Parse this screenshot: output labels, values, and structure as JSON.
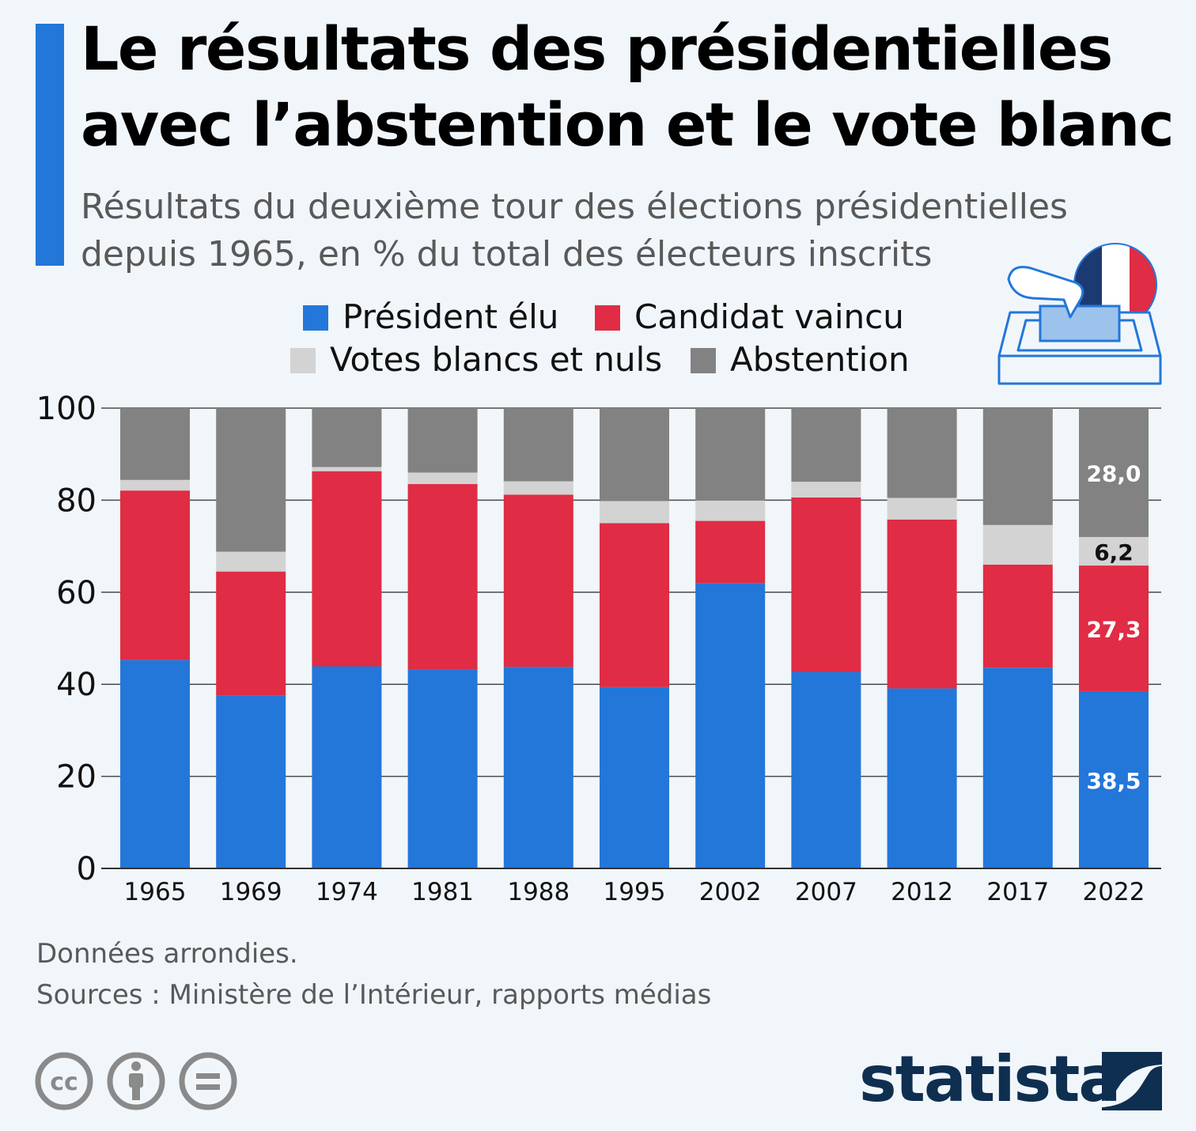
{
  "header": {
    "title_line1": "Le résultats des présidentielles",
    "title_line2": "avec l’abstention et le vote blanc",
    "subtitle_line1": "Résultats du deuxième tour des élections présidentielles",
    "subtitle_line2": "depuis 1965, en % du total des électeurs inscrits"
  },
  "legend": {
    "president": "Président élu",
    "candidat": "Candidat vaincu",
    "blancs": "Votes blancs et nuls",
    "abstention": "Abstention"
  },
  "colors": {
    "accent": "#2377d9",
    "president": "#2377d9",
    "candidat": "#e02c45",
    "blancs": "#d3d3d3",
    "abstention": "#828282",
    "brand": "#0f2f50"
  },
  "chart_data": {
    "type": "bar",
    "stacked": true,
    "categories": [
      "1965",
      "1969",
      "1974",
      "1981",
      "1988",
      "1995",
      "2002",
      "2007",
      "2012",
      "2017",
      "2022"
    ],
    "series": [
      {
        "name": "Président élu",
        "values": [
          45.3,
          37.5,
          43.9,
          43.2,
          43.8,
          39.4,
          62.0,
          42.7,
          39.1,
          43.6,
          38.5
        ]
      },
      {
        "name": "Candidat vaincu",
        "values": [
          36.8,
          27.0,
          42.4,
          40.3,
          37.4,
          35.6,
          13.5,
          37.9,
          36.7,
          22.4,
          27.3
        ]
      },
      {
        "name": "Votes blancs et nuls",
        "values": [
          2.3,
          4.3,
          0.9,
          2.5,
          2.9,
          4.8,
          4.4,
          3.4,
          4.7,
          8.6,
          6.2
        ]
      },
      {
        "name": "Abstention",
        "values": [
          15.6,
          31.2,
          12.8,
          14.0,
          15.9,
          20.2,
          20.1,
          16.0,
          19.5,
          25.4,
          28.0
        ]
      }
    ],
    "ylim": [
      0,
      100
    ],
    "yticks": [
      0,
      20,
      40,
      60,
      80,
      100
    ],
    "grid": true,
    "legend_position": "top",
    "data_labels": [
      {
        "category": "2022",
        "series": "Abstention",
        "text": "28,0"
      },
      {
        "category": "2022",
        "series": "Votes blancs et nuls",
        "text": "6,2"
      },
      {
        "category": "2022",
        "series": "Candidat vaincu",
        "text": "27,3"
      },
      {
        "category": "2022",
        "series": "Président élu",
        "text": "38,5"
      }
    ]
  },
  "footer": {
    "note": "Données arrondies.",
    "sources": "Sources : Ministère de l’Intérieur, rapports médias",
    "brand": "statista",
    "license_icons": [
      "cc-icon",
      "attribution-icon",
      "no-derivatives-icon"
    ]
  }
}
